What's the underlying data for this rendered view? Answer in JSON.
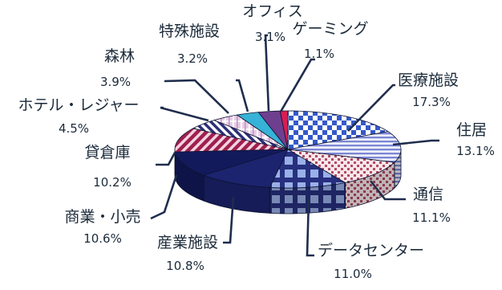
{
  "chart_data": {
    "type": "pie",
    "style": "3d-exploded",
    "categories": [
      "医療施設",
      "住居",
      "通信",
      "データセンター",
      "産業施設",
      "商業・小売",
      "貸倉庫",
      "ホテル・レジャー",
      "森林",
      "特殊施設",
      "オフィス",
      "ゲーミング"
    ],
    "values": [
      17.3,
      13.1,
      11.1,
      11.0,
      10.8,
      10.6,
      10.2,
      4.5,
      3.9,
      3.2,
      3.1,
      1.1
    ],
    "value_labels": [
      "17.3%",
      "13.1%",
      "11.1%",
      "11.0%",
      "10.8%",
      "10.6%",
      "10.2%",
      "4.5%",
      "3.9%",
      "3.2%",
      "3.1%",
      "1.1%"
    ],
    "colors": [
      "#3559c8",
      "#7c86d4",
      "#b24a66",
      "#27307e",
      "#1c2470",
      "#131a5c",
      "#9e1f4f",
      "#2d2f7a",
      "#c08fc0",
      "#36b3d6",
      "#6e3f8f",
      "#d81d52"
    ],
    "patterns": [
      "checker-blue",
      "horizontal-lines",
      "red-dots",
      "blue-grid",
      "solid-navy",
      "solid-dark",
      "diagonal-magenta",
      "diagonal-navy",
      "plaid-lilac",
      "solid-cyan",
      "solid-lavender",
      "solid-red"
    ],
    "title": "",
    "legend": "none"
  }
}
